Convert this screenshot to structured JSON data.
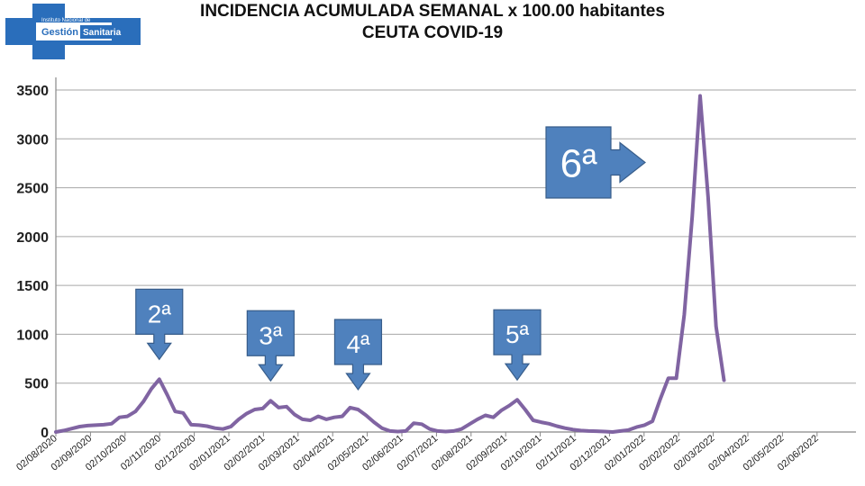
{
  "header": {
    "logo_line1": "Instituto Nacional de",
    "logo_word1": "Gestión",
    "logo_word2": "Sanitaria",
    "title_line1": "INCIDENCIA ACUMULADA SEMANAL x 100.00 habitantes",
    "title_line2": "CEUTA COVID-19"
  },
  "chart_data": {
    "type": "line",
    "title": "INCIDENCIA ACUMULADA SEMANAL x 100.00 habitantes",
    "subtitle": "CEUTA COVID-19",
    "xlabel": "",
    "ylabel": "",
    "ylim": [
      0,
      3500
    ],
    "yticks": [
      0,
      500,
      1000,
      1500,
      2000,
      2500,
      3000,
      3500
    ],
    "grid": true,
    "line_color": "#8064a2",
    "xticks": [
      "02/08/2020",
      "02/09/2020",
      "02/10/2020",
      "02/11/2020",
      "02/12/2020",
      "02/01/2021",
      "02/02/2021",
      "02/03/2021",
      "02/04/2021",
      "02/05/2021",
      "02/06/2021",
      "02/07/2021",
      "02/08/2021",
      "02/09/2021",
      "02/10/2021",
      "02/11/2021",
      "02/12/2021",
      "02/01/2022",
      "02/02/2022",
      "02/03/2022",
      "02/04/2022",
      "02/05/2022",
      "02/06/2022"
    ],
    "series": [
      {
        "values": [
          0,
          15,
          35,
          55,
          65,
          70,
          75,
          85,
          150,
          160,
          210,
          310,
          440,
          540,
          380,
          210,
          195,
          75,
          70,
          60,
          40,
          30,
          55,
          130,
          190,
          230,
          240,
          320,
          250,
          260,
          180,
          130,
          120,
          160,
          130,
          150,
          160,
          250,
          230,
          170,
          100,
          40,
          10,
          5,
          10,
          90,
          80,
          30,
          10,
          5,
          10,
          30,
          80,
          130,
          170,
          150,
          220,
          270,
          330,
          230,
          120,
          100,
          85,
          60,
          40,
          25,
          15,
          10,
          8,
          5,
          0,
          10,
          20,
          50,
          70,
          110,
          340,
          550,
          550,
          1200,
          2200,
          3440,
          2400,
          1080,
          530
        ]
      }
    ],
    "annotations": [
      {
        "label": "2ª",
        "direction": "down",
        "x_index": 13
      },
      {
        "label": "3ª",
        "direction": "down",
        "x_index": 27
      },
      {
        "label": "4ª",
        "direction": "down",
        "x_index": 38
      },
      {
        "label": "5ª",
        "direction": "down",
        "x_index": 58
      },
      {
        "label": "6ª",
        "direction": "right",
        "x_index": 80
      }
    ]
  }
}
